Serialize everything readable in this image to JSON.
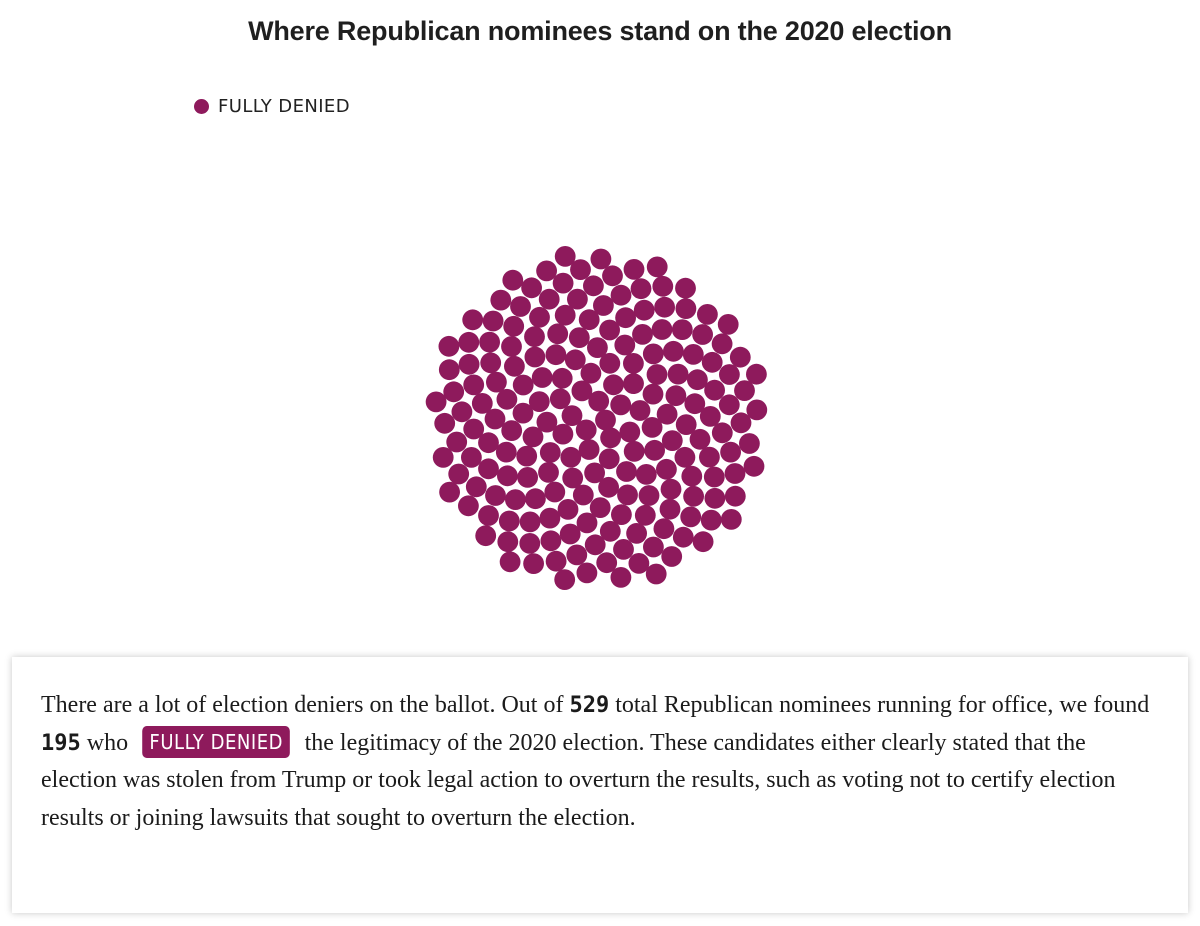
{
  "chart_data": {
    "type": "scatter",
    "title": "Where Republican nominees stand on the 2020 election",
    "legend": [
      {
        "name": "FULLY DENIED",
        "color": "#8e1a5c"
      }
    ],
    "legend_position": "top-left",
    "series": [
      {
        "name": "FULLY DENIED",
        "count": 195,
        "color": "#8e1a5c"
      }
    ]
  },
  "summary": {
    "part1": "There are a lot of election deniers on the ballot. Out of ",
    "total": "529",
    "part2": " total Republican nominees running for office, we found ",
    "denied_count": "195",
    "part3": " who ",
    "tag_label": "FULLY DENIED",
    "part4": " the legitimacy of the 2020 election. These candidates either clearly stated that the election was stolen from Trump or took legal action to overturn the results, such as voting not to certify election results or joining lawsuits that sought to overturn the election."
  },
  "colors": {
    "fully_denied": "#8e1a5c"
  }
}
